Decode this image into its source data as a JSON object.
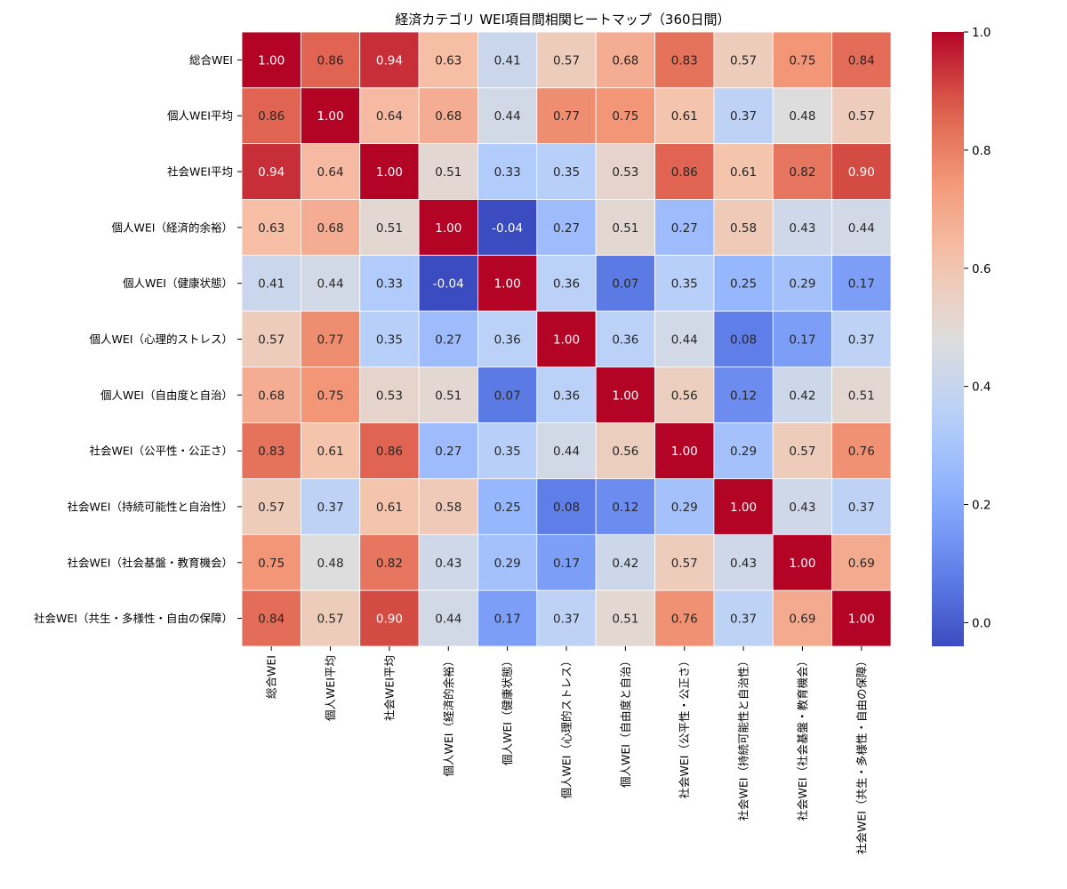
{
  "chart_data": {
    "type": "heatmap",
    "title": "経済カテゴリ WEI項目間相関ヒートマップ（360日間）",
    "labels": [
      "総合WEI",
      "個人WEI平均",
      "社会WEI平均",
      "個人WEI（経済的余裕）",
      "個人WEI（健康状態）",
      "個人WEI（心理的ストレス）",
      "個人WEI（自由度と自治）",
      "社会WEI（公平性・公正さ）",
      "社会WEI（持続可能性と自治性）",
      "社会WEI（社会基盤・教育機会）",
      "社会WEI（共生・多様性・自由の保障）"
    ],
    "matrix": [
      [
        1.0,
        0.86,
        0.94,
        0.63,
        0.41,
        0.57,
        0.68,
        0.83,
        0.57,
        0.75,
        0.84
      ],
      [
        0.86,
        1.0,
        0.64,
        0.68,
        0.44,
        0.77,
        0.75,
        0.61,
        0.37,
        0.48,
        0.57
      ],
      [
        0.94,
        0.64,
        1.0,
        0.51,
        0.33,
        0.35,
        0.53,
        0.86,
        0.61,
        0.82,
        0.9
      ],
      [
        0.63,
        0.68,
        0.51,
        1.0,
        -0.04,
        0.27,
        0.51,
        0.27,
        0.58,
        0.43,
        0.44
      ],
      [
        0.41,
        0.44,
        0.33,
        -0.04,
        1.0,
        0.36,
        0.07,
        0.35,
        0.25,
        0.29,
        0.17
      ],
      [
        0.57,
        0.77,
        0.35,
        0.27,
        0.36,
        1.0,
        0.36,
        0.44,
        0.08,
        0.17,
        0.37
      ],
      [
        0.68,
        0.75,
        0.53,
        0.51,
        0.07,
        0.36,
        1.0,
        0.56,
        0.12,
        0.42,
        0.51
      ],
      [
        0.83,
        0.61,
        0.86,
        0.27,
        0.35,
        0.44,
        0.56,
        1.0,
        0.29,
        0.57,
        0.76
      ],
      [
        0.57,
        0.37,
        0.61,
        0.58,
        0.25,
        0.08,
        0.12,
        0.29,
        1.0,
        0.43,
        0.37
      ],
      [
        0.75,
        0.48,
        0.82,
        0.43,
        0.29,
        0.17,
        0.42,
        0.57,
        0.43,
        1.0,
        0.69
      ],
      [
        0.84,
        0.57,
        0.9,
        0.44,
        0.17,
        0.37,
        0.51,
        0.76,
        0.37,
        0.69,
        1.0
      ]
    ],
    "colormap": "coolwarm",
    "vmin": -0.04,
    "vmax": 1.0,
    "colorbar_ticks": [
      "0.0",
      "0.2",
      "0.4",
      "0.6",
      "0.8",
      "1.0"
    ],
    "colorbar_tick_values": [
      0.0,
      0.2,
      0.4,
      0.6,
      0.8,
      1.0
    ],
    "legend_placement": "right"
  }
}
